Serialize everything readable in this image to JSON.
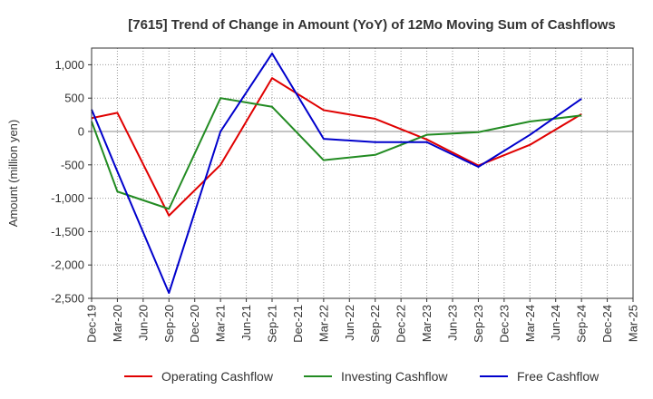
{
  "chart_data": {
    "type": "line",
    "title": "[7615]  Trend of Change in Amount (YoY) of 12Mo Moving Sum of Cashflows",
    "xlabel": "",
    "ylabel": "Amount (million yen)",
    "ylim": [
      -2500,
      1250
    ],
    "yticks": [
      1000,
      500,
      0,
      -500,
      -1000,
      -1500,
      -2000,
      -2500
    ],
    "ytick_labels": [
      "1,000",
      "500",
      "0",
      "-500",
      "-1,000",
      "-1,500",
      "-2,000",
      "-2,500"
    ],
    "categories": [
      "Dec-19",
      "Mar-20",
      "Jun-20",
      "Sep-20",
      "Dec-20",
      "Mar-21",
      "Jun-21",
      "Sep-21",
      "Dec-21",
      "Mar-22",
      "Jun-22",
      "Sep-22",
      "Dec-22",
      "Mar-23",
      "Jun-23",
      "Sep-23",
      "Dec-23",
      "Mar-24",
      "Jun-24",
      "Sep-24",
      "Dec-24",
      "Mar-25"
    ],
    "grid": true,
    "legend_position": "bottom",
    "series": [
      {
        "name": "Operating Cashflow",
        "color": "#e00000",
        "points": [
          [
            "Dec-19",
            200
          ],
          [
            "Mar-20",
            280
          ],
          [
            "Sep-20",
            -1260
          ],
          [
            "Mar-21",
            -500
          ],
          [
            "Sep-21",
            800
          ],
          [
            "Mar-22",
            320
          ],
          [
            "Sep-22",
            190
          ],
          [
            "Mar-23",
            -120
          ],
          [
            "Sep-23",
            -510
          ],
          [
            "Mar-24",
            -200
          ],
          [
            "Sep-24",
            260
          ]
        ]
      },
      {
        "name": "Investing Cashflow",
        "color": "#228b22",
        "points": [
          [
            "Dec-19",
            150
          ],
          [
            "Mar-20",
            -900
          ],
          [
            "Sep-20",
            -1160
          ],
          [
            "Mar-21",
            500
          ],
          [
            "Sep-21",
            370
          ],
          [
            "Mar-22",
            -430
          ],
          [
            "Sep-22",
            -350
          ],
          [
            "Mar-23",
            -50
          ],
          [
            "Sep-23",
            -10
          ],
          [
            "Mar-24",
            150
          ],
          [
            "Sep-24",
            240
          ]
        ]
      },
      {
        "name": "Free Cashflow",
        "color": "#0000cc",
        "points": [
          [
            "Dec-19",
            330
          ],
          [
            "Mar-20",
            -600
          ],
          [
            "Sep-20",
            -2420
          ],
          [
            "Mar-21",
            0
          ],
          [
            "Sep-21",
            1170
          ],
          [
            "Mar-22",
            -110
          ],
          [
            "Sep-22",
            -160
          ],
          [
            "Mar-23",
            -160
          ],
          [
            "Sep-23",
            -530
          ],
          [
            "Mar-24",
            -50
          ],
          [
            "Sep-24",
            490
          ]
        ]
      }
    ]
  }
}
